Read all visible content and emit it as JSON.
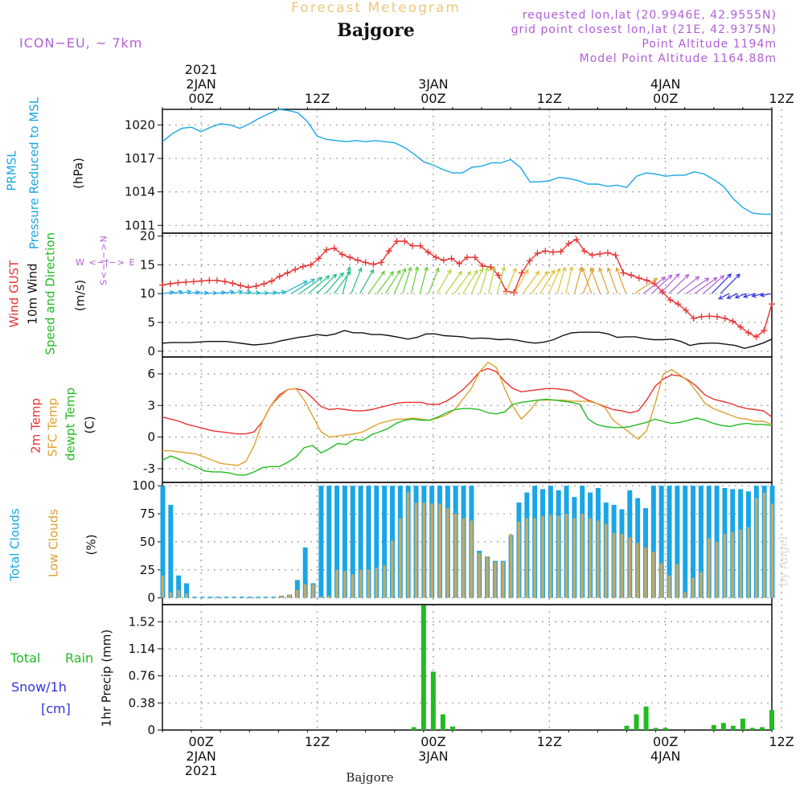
{
  "header": {
    "title": "Forecast Meteogram",
    "location": "Bajgore",
    "model": "ICON−EU, ~ 7km",
    "info": [
      "requested lon,lat (20.9946E, 42.9555N)",
      "grid point closest lon,lat (21E, 42.9375N)",
      "Point Altitude 1194m",
      "Model Point Altitude 1164.88m"
    ]
  },
  "footer": {
    "location": "Bajgore",
    "credit": "by Angel"
  },
  "colors": {
    "pressure": "#1aa6e6",
    "gust": "#e83232",
    "wind": "#111111",
    "temp2m": "#e83232",
    "sfc": "#e0a030",
    "dewpt": "#22bb22",
    "total_clouds": "#1aa6e6",
    "low_clouds": "#c8a860",
    "rain": "#22bb22",
    "snow": "#3333dd",
    "purple": "#b15ed8"
  },
  "panel_labels": {
    "pressure": {
      "line1": "PRMSL",
      "line2": "Pressure Reduced to MSL",
      "unit": "(hPa)"
    },
    "wind": {
      "gust": "Wind GUST",
      "wind10": "10m Wind",
      "dir": "Speed and Direction",
      "unit": "(m/s)",
      "compass_wb": "W <−|−> E",
      "compass_ns": "S<−|−>N"
    },
    "temp": {
      "t2m": "2m Temp",
      "sfc": "SFC Temp",
      "dew": "dewpt Temp",
      "unit": "(C)"
    },
    "clouds": {
      "total": "Total Clouds",
      "low": "Low Clouds",
      "unit": "(%)"
    },
    "precip": {
      "rain1": "Total",
      "rain2": "Rain",
      "snow": "Snow/1h",
      "snow_unit": "[cm]",
      "axis": "1hr Precip (mm)"
    }
  },
  "chart_data": [
    {
      "type": "line",
      "title": "Pressure Reduced to MSL",
      "ylabel": "(hPa)",
      "x_range_hours": [
        -4,
        59
      ],
      "ylim": [
        1010.3,
        1021.4
      ],
      "yticks": [
        1011,
        1014,
        1017,
        1020
      ],
      "series": [
        {
          "name": "PRMSL",
          "x": [
            -4,
            -3,
            -2,
            -1,
            0,
            1,
            2,
            3,
            4,
            5,
            6,
            7,
            8,
            9,
            10,
            11,
            12,
            13,
            14,
            15,
            16,
            17,
            18,
            19,
            20,
            21,
            22,
            23,
            24,
            25,
            26,
            27,
            28,
            29,
            30,
            31,
            32,
            33,
            34,
            35,
            36,
            37,
            38,
            39,
            40,
            41,
            42,
            43,
            44,
            45,
            46,
            47,
            48,
            49,
            50,
            51,
            52,
            53,
            54,
            55,
            56,
            57,
            58,
            59
          ],
          "values": [
            1018.5,
            1019.2,
            1019.7,
            1019.8,
            1019.4,
            1019.8,
            1020.1,
            1020.0,
            1019.7,
            1020.1,
            1020.6,
            1021.0,
            1021.4,
            1021.3,
            1021.1,
            1020.3,
            1019.0,
            1018.7,
            1018.6,
            1018.5,
            1018.6,
            1018.5,
            1018.6,
            1018.5,
            1018.4,
            1018.0,
            1017.4,
            1016.7,
            1016.4,
            1016.0,
            1015.7,
            1015.7,
            1016.2,
            1016.3,
            1016.6,
            1016.6,
            1016.9,
            1016.2,
            1014.9,
            1014.9,
            1015.0,
            1015.3,
            1015.2,
            1015.0,
            1014.7,
            1014.7,
            1014.5,
            1014.6,
            1014.4,
            1015.4,
            1015.7,
            1015.6,
            1015.4,
            1015.5,
            1015.5,
            1015.8,
            1015.6,
            1015.1,
            1014.5,
            1013.4,
            1012.6,
            1012.1,
            1012.0,
            1012.0
          ]
        }
      ]
    },
    {
      "type": "line",
      "title": "Wind GUST / 10m Wind Speed and Direction",
      "ylabel": "(m/s)",
      "x_range_hours": [
        -4,
        59
      ],
      "ylim": [
        -1,
        20.5
      ],
      "yticks": [
        0,
        5,
        10,
        15,
        20
      ],
      "series": [
        {
          "name": "Wind GUST",
          "values": [
            11.5,
            11.7,
            11.9,
            12.0,
            12.1,
            12.2,
            12.3,
            12.3,
            12.1,
            11.8,
            11.4,
            11.1,
            11.3,
            11.7,
            12.2,
            13.0,
            13.6,
            14.2,
            14.7,
            15.0,
            16.1,
            17.6,
            17.9,
            16.8,
            16.3,
            15.8,
            15.4,
            15.1,
            15.4,
            17.4,
            19.1,
            19.1,
            18.3,
            18.3,
            17.2,
            16.3,
            15.8,
            16.1,
            15.2,
            16.3,
            16.3,
            14.8,
            14.6,
            13.2,
            10.4,
            10.2,
            13.6,
            15.7,
            17.0,
            17.4,
            17.2,
            17.3,
            18.7,
            19.4,
            17.4,
            16.7,
            16.9,
            17.1,
            16.7,
            13.6,
            13.2,
            12.7,
            12.3,
            11.7,
            10.3,
            8.9,
            8.2,
            7.1,
            5.7,
            6.0,
            6.1,
            6.0,
            5.7,
            5.2,
            4.2,
            3.2,
            2.5,
            3.6,
            8.2
          ]
        },
        {
          "name": "10m Wind",
          "values": [
            1.4,
            1.5,
            1.5,
            1.5,
            1.6,
            1.7,
            1.7,
            1.7,
            1.5,
            1.3,
            1.1,
            1.2,
            1.4,
            1.8,
            2.1,
            2.4,
            2.6,
            2.9,
            2.7,
            3.0,
            3.6,
            3.2,
            3.2,
            2.9,
            2.9,
            2.7,
            2.4,
            2.1,
            2.4,
            3.0,
            3.0,
            2.7,
            2.6,
            2.5,
            2.2,
            2.3,
            2.2,
            2.0,
            2.1,
            1.9,
            1.6,
            1.4,
            1.6,
            2.0,
            2.7,
            3.2,
            3.3,
            3.3,
            3.3,
            3.0,
            2.4,
            2.5,
            2.5,
            2.2,
            2.0,
            2.0,
            2.1,
            1.7,
            1.0,
            1.3,
            1.4,
            1.4,
            1.2,
            1.0,
            0.5,
            0.9,
            1.4,
            2.1
          ]
        }
      ]
    },
    {
      "type": "line",
      "title": "2m Temp / SFC Temp / dewpt Temp",
      "ylabel": "(C)",
      "x_range_hours": [
        -4,
        59
      ],
      "ylim": [
        -4.3,
        7.6
      ],
      "yticks": [
        -3,
        0,
        3,
        6
      ],
      "series": [
        {
          "name": "2m Temp",
          "values": [
            1.9,
            1.7,
            1.5,
            1.2,
            1.0,
            0.8,
            0.6,
            0.5,
            0.4,
            0.3,
            0.3,
            0.5,
            1.5,
            3.0,
            4.0,
            4.5,
            4.6,
            4.4,
            3.7,
            2.9,
            2.6,
            2.7,
            2.6,
            2.5,
            2.5,
            2.6,
            2.8,
            3.0,
            3.2,
            3.3,
            3.3,
            3.3,
            3.1,
            3.1,
            3.4,
            3.9,
            4.5,
            5.3,
            6.2,
            6.5,
            6.2,
            5.3,
            4.6,
            4.3,
            4.4,
            4.5,
            4.6,
            4.6,
            4.5,
            4.4,
            3.9,
            3.5,
            3.2,
            2.9,
            2.6,
            2.5,
            2.3,
            2.5,
            3.5,
            4.8,
            5.5,
            5.9,
            5.8,
            5.4,
            4.8,
            4.0,
            3.6,
            3.4,
            3.2,
            2.9,
            2.7,
            2.6,
            2.5,
            1.9
          ]
        },
        {
          "name": "SFC Temp",
          "values": [
            -1.3,
            -1.3,
            -1.4,
            -1.5,
            -1.6,
            -1.9,
            -2.2,
            -2.5,
            -2.6,
            -2.7,
            -2.3,
            -0.8,
            1.5,
            3.0,
            3.8,
            4.5,
            4.6,
            3.5,
            2.0,
            0.5,
            0.0,
            0.1,
            0.2,
            0.3,
            0.5,
            0.9,
            1.3,
            1.5,
            1.7,
            1.7,
            1.8,
            1.7,
            1.6,
            1.8,
            2.1,
            2.6,
            3.6,
            4.6,
            6.2,
            7.1,
            6.6,
            4.6,
            2.9,
            1.7,
            2.5,
            3.5,
            3.5,
            3.5,
            3.5,
            3.4,
            3.4,
            3.4,
            3.2,
            2.8,
            1.6,
            1.0,
            0.4,
            -0.2,
            0.6,
            3.1,
            6.0,
            6.4,
            5.9,
            5.3,
            4.3,
            3.2,
            2.7,
            2.4,
            2.1,
            1.8,
            1.7,
            1.5,
            1.5,
            1.2
          ]
        },
        {
          "name": "dewpt Temp",
          "values": [
            -2.2,
            -1.8,
            -2.1,
            -2.5,
            -2.8,
            -3.2,
            -3.3,
            -3.3,
            -3.4,
            -3.6,
            -3.6,
            -3.3,
            -2.9,
            -2.8,
            -2.8,
            -2.4,
            -1.9,
            -1.0,
            -0.8,
            -1.5,
            -1.1,
            -0.6,
            -0.7,
            -0.2,
            -0.3,
            0.2,
            0.5,
            0.8,
            1.3,
            1.6,
            1.7,
            1.6,
            1.6,
            1.9,
            2.3,
            2.6,
            2.7,
            2.7,
            2.6,
            2.3,
            2.2,
            2.4,
            3.1,
            3.3,
            3.4,
            3.5,
            3.6,
            3.5,
            3.4,
            3.3,
            3.1,
            1.7,
            1.2,
            1.0,
            0.9,
            0.9,
            1.0,
            1.2,
            1.4,
            1.7,
            1.5,
            1.3,
            1.4,
            1.6,
            1.8,
            1.6,
            1.3,
            1.1,
            1.0,
            1.2,
            1.3,
            1.2,
            1.2,
            1.1
          ]
        }
      ]
    },
    {
      "type": "bar",
      "title": "Total Clouds / Low Clouds",
      "ylabel": "(%)",
      "x_range_hours": [
        -4,
        59
      ],
      "ylim": [
        -6,
        103
      ],
      "yticks": [
        0,
        25,
        50,
        75,
        100
      ],
      "series": [
        {
          "name": "Total Clouds",
          "values": [
            100,
            83,
            20,
            13,
            1,
            1,
            1,
            1,
            1,
            1,
            1,
            1,
            1,
            1,
            1,
            2,
            3,
            16,
            45,
            13,
            100,
            100,
            100,
            100,
            100,
            100,
            100,
            100,
            100,
            100,
            100,
            100,
            100,
            100,
            100,
            100,
            100,
            100,
            100,
            100,
            42,
            37,
            33,
            33,
            56,
            85,
            94,
            100,
            97,
            100,
            96,
            100,
            90,
            100,
            94,
            98,
            85,
            83,
            79,
            96,
            89,
            80,
            100,
            100,
            100,
            100,
            100,
            100,
            100,
            100,
            100,
            98,
            97,
            97,
            95,
            100,
            100,
            100
          ]
        },
        {
          "name": "Low Clouds",
          "values": [
            20,
            5,
            7,
            4,
            0,
            0,
            0,
            0,
            0,
            0,
            0,
            0,
            0,
            0,
            0,
            2,
            3,
            7,
            12,
            12,
            1,
            2,
            25,
            24,
            21,
            25,
            25,
            27,
            29,
            51,
            71,
            94,
            85,
            85,
            84,
            84,
            80,
            75,
            71,
            69,
            40,
            37,
            32,
            32,
            57,
            68,
            71,
            71,
            73,
            74,
            73,
            75,
            71,
            75,
            71,
            69,
            66,
            58,
            57,
            54,
            49,
            45,
            41,
            31,
            20,
            30,
            5,
            18,
            23,
            53,
            50,
            57,
            59,
            61,
            63,
            89,
            94,
            84
          ]
        }
      ]
    },
    {
      "type": "bar",
      "title": "1hr Precip (mm)",
      "ylabel": "1hr Precip (mm)",
      "x_range_hours": [
        -4,
        59
      ],
      "ylim": [
        0,
        1.76
      ],
      "yticks": [
        0,
        0.38,
        0.76,
        1.14,
        1.52
      ],
      "series": [
        {
          "name": "Total Rain",
          "x": [
            22,
            23,
            24,
            25,
            26,
            44,
            45,
            46,
            47,
            48,
            53,
            54,
            55,
            56,
            57,
            58,
            59
          ],
          "values": [
            0.04,
            1.75,
            0.82,
            0.22,
            0.05,
            0.06,
            0.22,
            0.33,
            0.03,
            0.03,
            0.07,
            0.1,
            0.06,
            0.16,
            0.03,
            0.04,
            0.28
          ]
        },
        {
          "name": "Snow/1h",
          "x": [],
          "values": []
        }
      ]
    }
  ],
  "time_axis": {
    "top": [
      {
        "hour": 0,
        "lines": [
          "2021",
          "2JAN",
          "00Z"
        ]
      },
      {
        "hour": 12,
        "lines": [
          "",
          "",
          "12Z"
        ]
      },
      {
        "hour": 24,
        "lines": [
          "",
          "3JAN",
          "00Z"
        ]
      },
      {
        "hour": 36,
        "lines": [
          "",
          "",
          "12Z"
        ]
      },
      {
        "hour": 48,
        "lines": [
          "",
          "4JAN",
          "00Z"
        ]
      },
      {
        "hour": 60,
        "lines": [
          "",
          "",
          "12Z"
        ]
      }
    ],
    "bottom": [
      {
        "hour": 0,
        "lines": [
          "00Z",
          "2JAN",
          "2021"
        ]
      },
      {
        "hour": 12,
        "lines": [
          "12Z",
          "",
          ""
        ]
      },
      {
        "hour": 24,
        "lines": [
          "00Z",
          "3JAN",
          ""
        ]
      },
      {
        "hour": 36,
        "lines": [
          "12Z",
          "",
          ""
        ]
      },
      {
        "hour": 48,
        "lines": [
          "00Z",
          "4JAN",
          ""
        ]
      },
      {
        "hour": 60,
        "lines": [
          "12Z",
          "",
          ""
        ]
      }
    ]
  }
}
